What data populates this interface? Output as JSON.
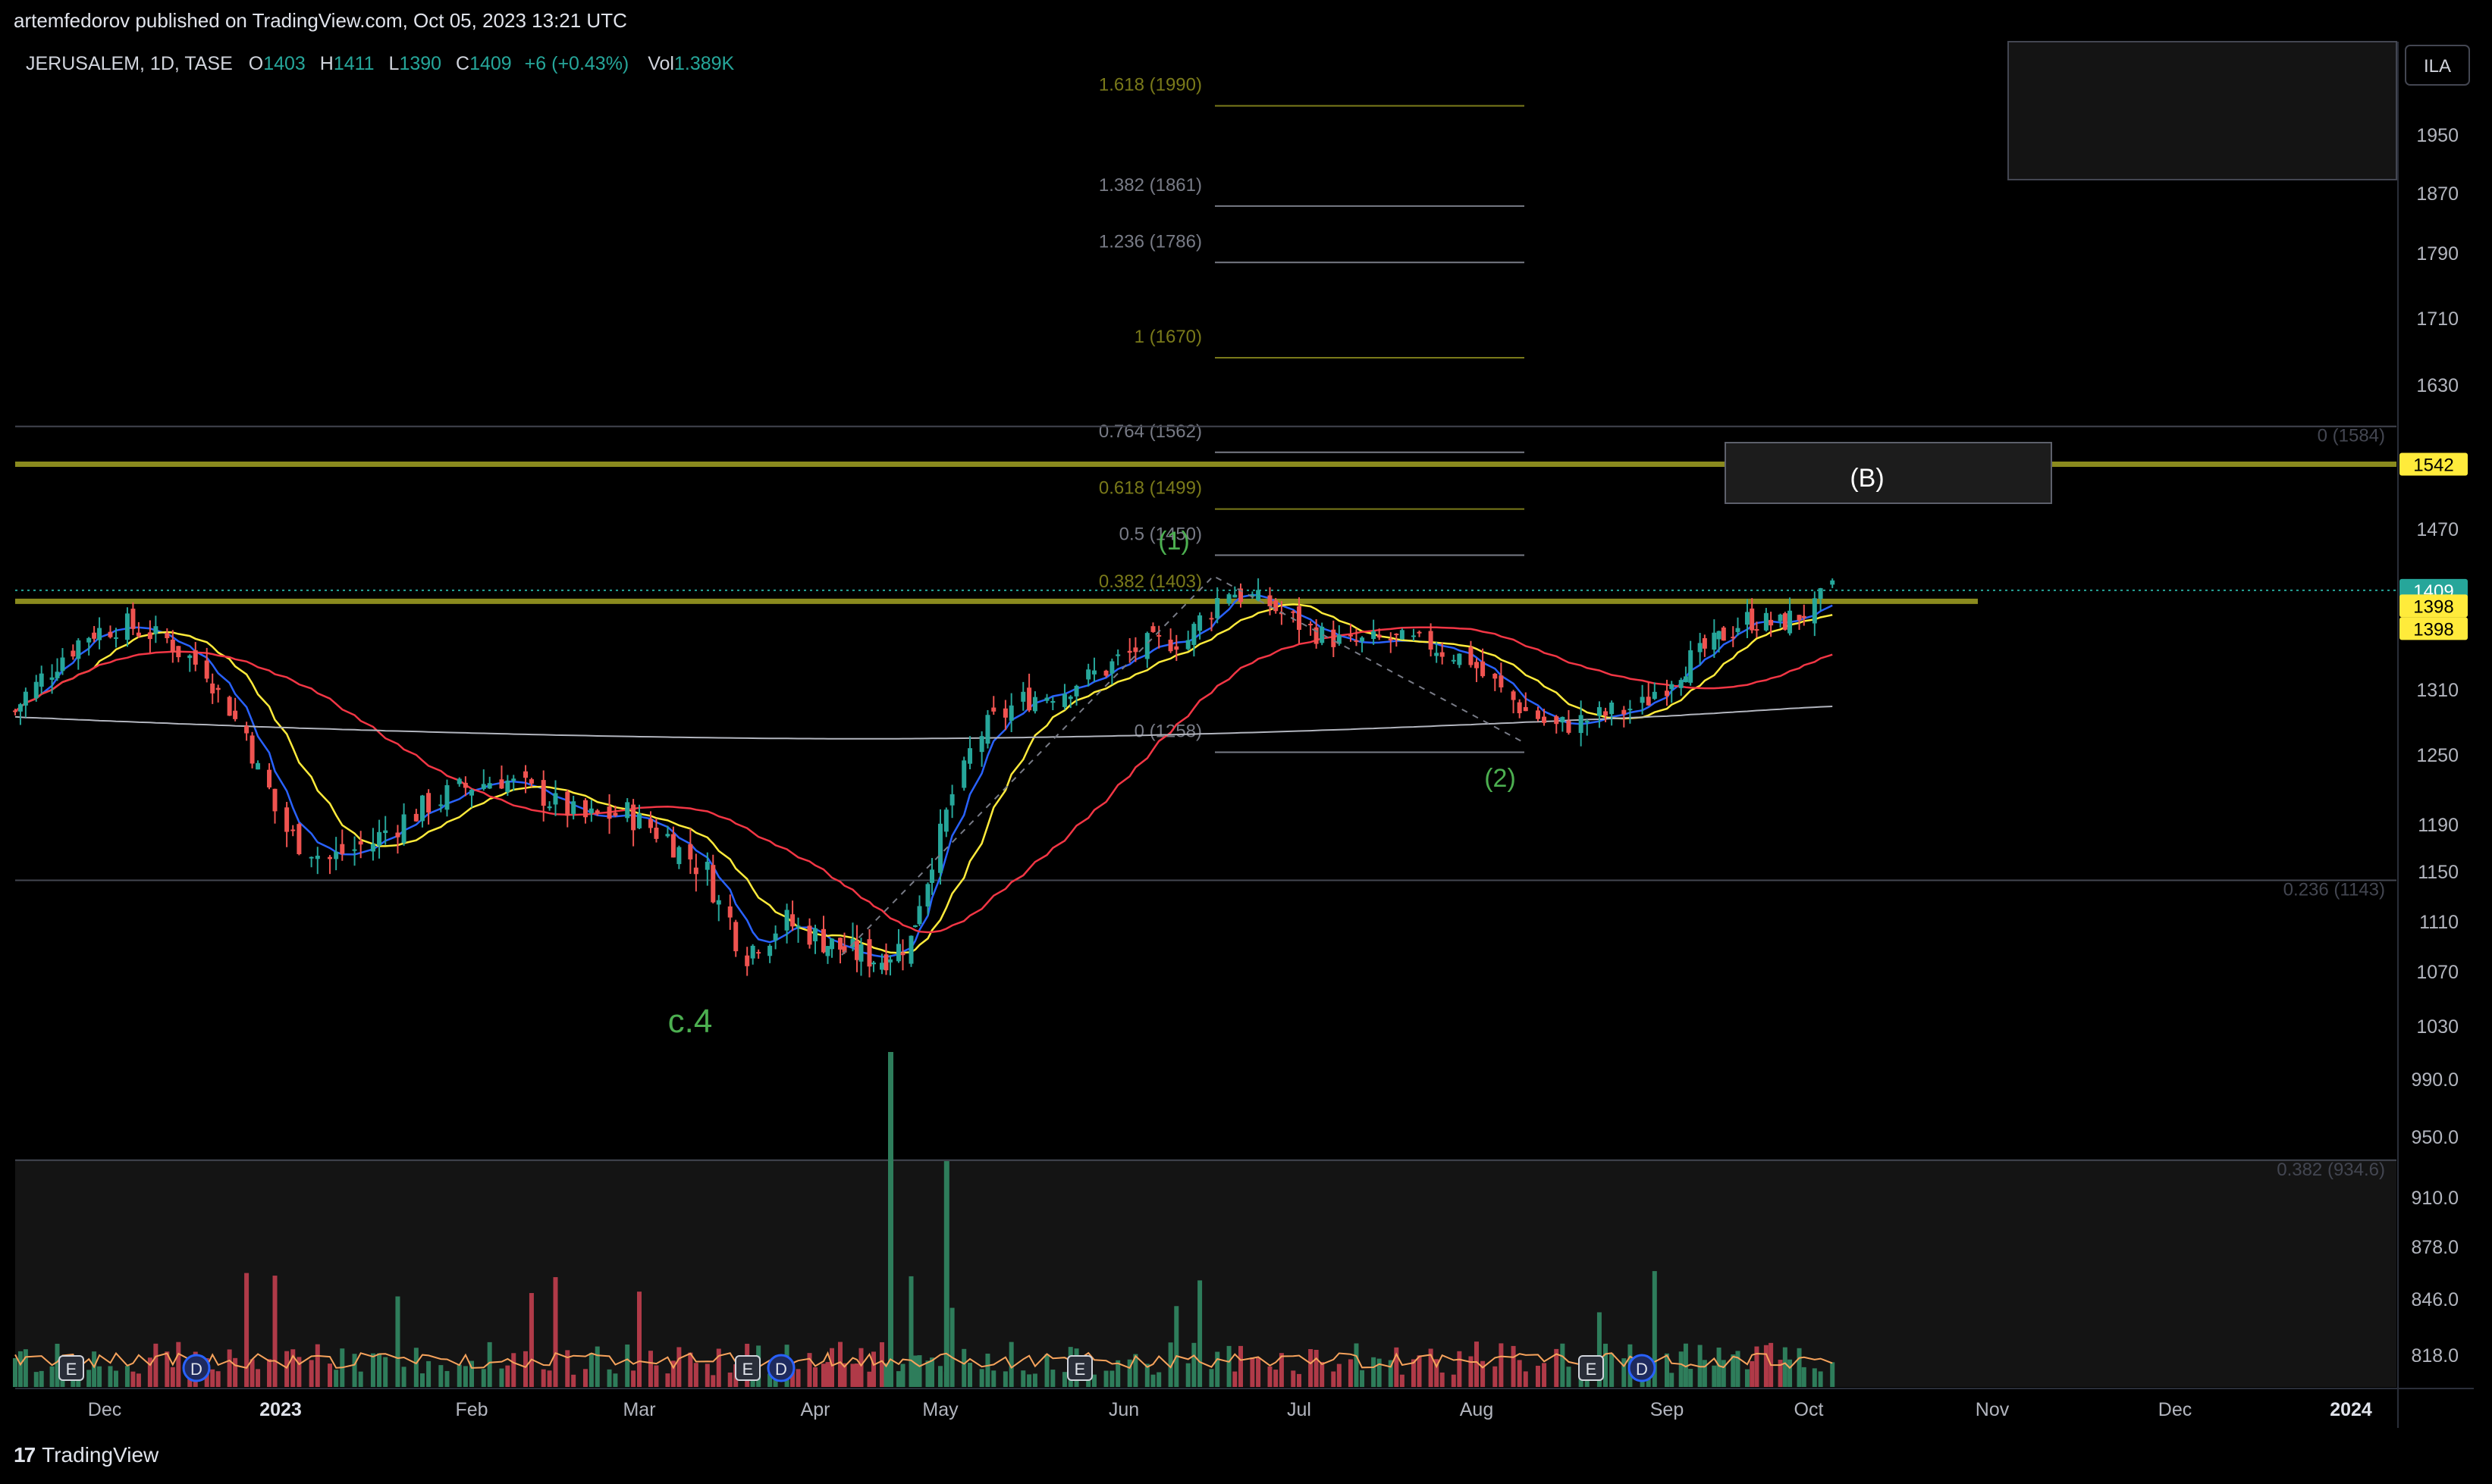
{
  "header": {
    "published": "artemfedorov published on TradingView.com, Oct 05, 2023 13:21 UTC"
  },
  "footer": {
    "brand": "TradingView",
    "brand_icon": "tradingview-logo-icon"
  },
  "currency_badge": "ILA",
  "legend": {
    "symbol": "JERUSALEM, 1D, TASE",
    "o_label": "O",
    "o": "1403",
    "h_label": "H",
    "h": "1411",
    "l_label": "L",
    "l": "1390",
    "c_label": "C",
    "c": "1409",
    "change": "+6 (+0.43%)",
    "vol_label": "Vol",
    "vol": "1.389K"
  },
  "colors": {
    "background": "#000000",
    "up": "#26a69a",
    "down": "#ef5350",
    "vol_up": "#2e7d5b",
    "vol_down": "#b03a48",
    "ma_blue": "#2962ff",
    "ma_yellow": "#ffeb3b",
    "ma_red": "#f23645",
    "ma_gray": "#b2b5be",
    "fib_olive": "#7a7a1a",
    "fib_gray": "#787b86",
    "wave_label": "#4caf50",
    "last_price_bg": "#26a69a",
    "level_bg": "#ffeb3b",
    "vol_ma": "#f7a35c"
  },
  "annotations": {
    "wave_1": "(1)",
    "wave_2": "(2)",
    "wave_c4": "c.4",
    "wave_b": "(B)"
  },
  "chart_data": {
    "type": "candlestick",
    "title": "JERUSALEM, 1D, TASE",
    "x_ticks": [
      "Dec",
      "2023",
      "Feb",
      "Mar",
      "Apr",
      "May",
      "Jun",
      "Jul",
      "Aug",
      "Sep",
      "Oct",
      "Nov",
      "Dec",
      "2024"
    ],
    "y_ticks": [
      "1950",
      "1870",
      "1790",
      "1710",
      "1630",
      "1470",
      "1310",
      "1250",
      "1190",
      "1150",
      "1110",
      "1070",
      "1030",
      "990.0",
      "950.0",
      "910.0",
      "878.0",
      "846.0",
      "818.0"
    ],
    "price_labels": [
      {
        "value": "1542",
        "style": "level"
      },
      {
        "value": "1409",
        "style": "last"
      },
      {
        "value": "1398",
        "style": "level"
      },
      {
        "value": "1398",
        "style": "level"
      }
    ],
    "fib_extension_levels": [
      {
        "label": "1.618 (1990)",
        "value": 1990,
        "color": "olive"
      },
      {
        "label": "1.382 (1861)",
        "value": 1861,
        "color": "gray"
      },
      {
        "label": "1.236 (1786)",
        "value": 1786,
        "color": "gray"
      },
      {
        "label": "1 (1670)",
        "value": 1670,
        "color": "olive"
      },
      {
        "label": "0.764 (1562)",
        "value": 1562,
        "color": "gray"
      },
      {
        "label": "0.618 (1499)",
        "value": 1499,
        "color": "olive"
      },
      {
        "label": "0.5 (1450)",
        "value": 1450,
        "color": "gray"
      },
      {
        "label": "0.382 (1403)",
        "value": 1403,
        "color": "olive"
      },
      {
        "label": "0 (1258)",
        "value": 1258,
        "color": "gray"
      }
    ],
    "fib_retracement_levels": [
      {
        "label": "0 (1584)",
        "value": 1584
      },
      {
        "label": "0.236 (1143)",
        "value": 1143
      },
      {
        "label": "0.382 (934.6)",
        "value": 934.6
      }
    ],
    "horizontal_levels": [
      1542,
      1398
    ],
    "close_approx": [
      {
        "d": "2022-11-14",
        "c": 1290
      },
      {
        "d": "2022-11-21",
        "c": 1330
      },
      {
        "d": "2022-11-28",
        "c": 1365
      },
      {
        "d": "2022-12-05",
        "c": 1375
      },
      {
        "d": "2022-12-12",
        "c": 1360
      },
      {
        "d": "2022-12-19",
        "c": 1330
      },
      {
        "d": "2022-12-26",
        "c": 1270
      },
      {
        "d": "2023-01-02",
        "c": 1185
      },
      {
        "d": "2023-01-09",
        "c": 1160
      },
      {
        "d": "2023-01-16",
        "c": 1175
      },
      {
        "d": "2023-01-23",
        "c": 1200
      },
      {
        "d": "2023-01-30",
        "c": 1220
      },
      {
        "d": "2023-02-06",
        "c": 1230
      },
      {
        "d": "2023-02-13",
        "c": 1215
      },
      {
        "d": "2023-02-20",
        "c": 1195
      },
      {
        "d": "2023-02-27",
        "c": 1200
      },
      {
        "d": "2023-03-06",
        "c": 1180
      },
      {
        "d": "2023-03-13",
        "c": 1150
      },
      {
        "d": "2023-03-20",
        "c": 1085
      },
      {
        "d": "2023-03-27",
        "c": 1110
      },
      {
        "d": "2023-04-03",
        "c": 1095
      },
      {
        "d": "2023-04-10",
        "c": 1085
      },
      {
        "d": "2023-04-17",
        "c": 1080
      },
      {
        "d": "2023-04-24",
        "c": 1095
      },
      {
        "d": "2023-05-01",
        "c": 1180
      },
      {
        "d": "2023-05-08",
        "c": 1270
      },
      {
        "d": "2023-05-15",
        "c": 1300
      },
      {
        "d": "2023-05-22",
        "c": 1310
      },
      {
        "d": "2023-05-29",
        "c": 1330
      },
      {
        "d": "2023-06-05",
        "c": 1355
      },
      {
        "d": "2023-06-12",
        "c": 1360
      },
      {
        "d": "2023-06-19",
        "c": 1410
      },
      {
        "d": "2023-06-26",
        "c": 1395
      },
      {
        "d": "2023-07-03",
        "c": 1370
      },
      {
        "d": "2023-07-10",
        "c": 1355
      },
      {
        "d": "2023-07-17",
        "c": 1360
      },
      {
        "d": "2023-07-24",
        "c": 1355
      },
      {
        "d": "2023-07-31",
        "c": 1340
      },
      {
        "d": "2023-08-07",
        "c": 1300
      },
      {
        "d": "2023-08-14",
        "c": 1275
      },
      {
        "d": "2023-08-21",
        "c": 1285
      },
      {
        "d": "2023-08-28",
        "c": 1295
      },
      {
        "d": "2023-09-04",
        "c": 1330
      },
      {
        "d": "2023-09-11",
        "c": 1355
      },
      {
        "d": "2023-09-18",
        "c": 1380
      },
      {
        "d": "2023-09-25",
        "c": 1375
      },
      {
        "d": "2023-10-02",
        "c": 1390
      },
      {
        "d": "2023-10-05",
        "c": 1409
      }
    ],
    "moving_averages": [
      "blue (short)",
      "yellow (medium)",
      "red (long)",
      "gray (longest)"
    ],
    "volume": "bars at bottom with orange moving average",
    "event_markers": [
      {
        "label": "E",
        "kind": "earnings"
      },
      {
        "label": "D",
        "kind": "dividend"
      },
      {
        "label": "E",
        "kind": "earnings"
      },
      {
        "label": "D",
        "kind": "dividend"
      },
      {
        "label": "E",
        "kind": "earnings"
      },
      {
        "label": "E",
        "kind": "earnings"
      },
      {
        "label": "D",
        "kind": "dividend"
      }
    ],
    "grid": false
  }
}
